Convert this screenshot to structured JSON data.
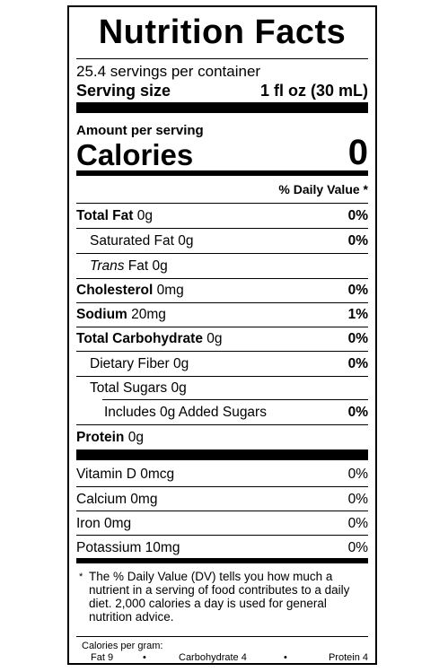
{
  "title": "Nutrition Facts",
  "servings_per_container": "25.4 servings per container",
  "serving_size_label": "Serving size",
  "serving_size_value": "1 fl oz (30 mL)",
  "amount_per_serving": "Amount per serving",
  "calories_label": "Calories",
  "calories_value": "0",
  "dv_header": "% Daily Value *",
  "nutrients": {
    "total_fat": {
      "name": "Total Fat",
      "amount": "0g",
      "dv": "0%"
    },
    "saturated_fat": {
      "name": "Saturated Fat 0g",
      "dv": "0%"
    },
    "trans_fat": {
      "name_italic": "Trans",
      "name_rest": "Fat 0g"
    },
    "cholesterol": {
      "name": "Cholesterol",
      "amount": "0mg",
      "dv": "0%"
    },
    "sodium": {
      "name": "Sodium",
      "amount": "20mg",
      "dv": "1%"
    },
    "total_carbohydrate": {
      "name": "Total Carbohydrate",
      "amount": "0g",
      "dv": "0%"
    },
    "dietary_fiber": {
      "name": "Dietary Fiber 0g",
      "dv": "0%"
    },
    "total_sugars": {
      "name": "Total Sugars 0g"
    },
    "added_sugars": {
      "name": "Includes 0g Added Sugars",
      "dv": "0%"
    },
    "protein": {
      "name": "Protein",
      "amount": "0g"
    }
  },
  "vitamins": [
    {
      "name": "Vitamin D 0mcg",
      "dv": "0%"
    },
    {
      "name": "Calcium 0mg",
      "dv": "0%"
    },
    {
      "name": "Iron 0mg",
      "dv": "0%"
    },
    {
      "name": "Potassium 10mg",
      "dv": "0%"
    }
  ],
  "footnote": {
    "star": "*",
    "text": "The % Daily Value (DV) tells you how much a nutrient in a serving of food contributes to a daily diet. 2,000 calories a day is used for general nutrition advice."
  },
  "calories_per_gram": {
    "label": "Calories per gram:",
    "fat": "Fat 9",
    "carbohydrate": "Carbohydrate 4",
    "protein": "Protein 4",
    "bullet": "•"
  }
}
